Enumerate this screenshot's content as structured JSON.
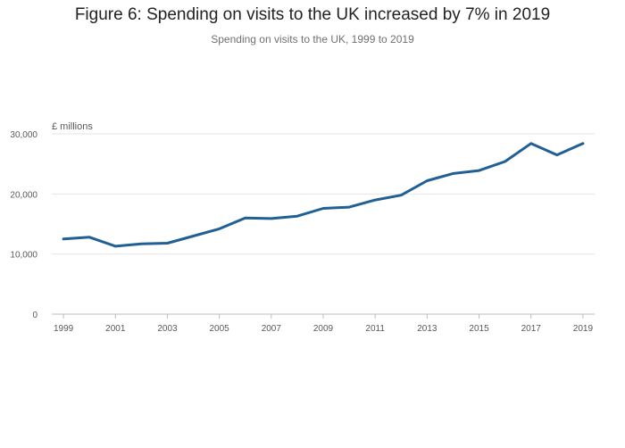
{
  "chart_data": {
    "type": "line",
    "title": "Figure 6: Spending on visits to the UK increased by 7% in 2019",
    "subtitle": "Spending on visits to the UK, 1999 to 2019",
    "ylabel": "£ millions",
    "xlabel": "",
    "x": [
      1999,
      2000,
      2001,
      2002,
      2003,
      2004,
      2005,
      2006,
      2007,
      2008,
      2009,
      2010,
      2011,
      2012,
      2013,
      2014,
      2015,
      2016,
      2017,
      2018,
      2019
    ],
    "series": [
      {
        "values": [
          12500,
          12800,
          11300,
          11700,
          11800,
          13000,
          14200,
          16000,
          15900,
          16300,
          17600,
          17800,
          19000,
          19800,
          22200,
          23400,
          23900,
          25400,
          28400,
          26500,
          28400
        ]
      }
    ],
    "xticks": [
      "1999",
      "2001",
      "2003",
      "2005",
      "2007",
      "2009",
      "2011",
      "2013",
      "2015",
      "2017",
      "2019"
    ],
    "yticks": [
      "0",
      "10,000",
      "20,000",
      "30,000"
    ],
    "ylim": [
      0,
      30000
    ],
    "grid": true,
    "colors": {
      "line": "#206095",
      "grid": "#e6e6e6",
      "axis": "#bdbdbd"
    }
  }
}
